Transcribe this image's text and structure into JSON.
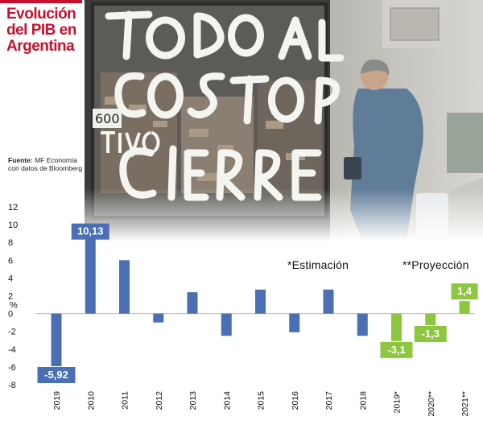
{
  "header": {
    "title_lines": [
      "Evolución",
      "del PIB en",
      "Argentina"
    ]
  },
  "source": {
    "label": "Fuente:",
    "text": "MF Economía con datos de Bloomberg"
  },
  "photo": {
    "description_icons": [
      "storefront-photo"
    ]
  },
  "notes": {
    "estimate": "*Estimación",
    "projection": "**Proyección"
  },
  "colors": {
    "actual": "#4a6fb5",
    "estimate": "#8dc63f",
    "title": "#c8102e"
  },
  "chart_data": {
    "type": "bar",
    "title": "Evolución del PIB en Argentina",
    "ylabel": "%",
    "ylim": [
      -8,
      12
    ],
    "yticks": [
      12,
      10,
      8,
      6,
      4,
      2,
      0,
      -2,
      -4,
      -6,
      -8
    ],
    "categories": [
      "2019",
      "2010",
      "2011",
      "2012",
      "2013",
      "2014",
      "2015",
      "2016",
      "2017",
      "2018",
      "2019*",
      "2020**",
      "2021**"
    ],
    "values": [
      -5.92,
      10.13,
      6.0,
      -1.0,
      2.4,
      -2.5,
      2.7,
      -2.1,
      2.7,
      -2.5,
      -3.1,
      -1.3,
      1.4
    ],
    "kinds": [
      "actual",
      "actual",
      "actual",
      "actual",
      "actual",
      "actual",
      "actual",
      "actual",
      "actual",
      "actual",
      "estimate",
      "estimate",
      "estimate"
    ],
    "data_labels": [
      "-5,92",
      "10,13",
      "",
      "",
      "",
      "",
      "",
      "",
      "",
      "",
      "-3,1",
      "-1,3",
      "1,4"
    ],
    "grid": false
  }
}
